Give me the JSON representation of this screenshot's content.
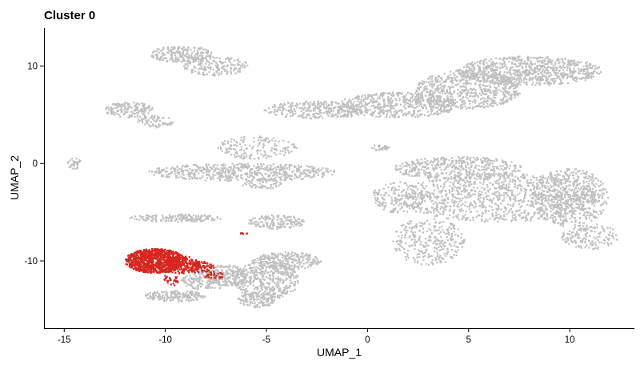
{
  "chart_data": {
    "type": "scatter",
    "title": "Cluster 0",
    "xlabel": "UMAP_1",
    "ylabel": "UMAP_2",
    "xlim": [
      -16,
      13.2
    ],
    "ylim": [
      -16.9,
      13.9
    ],
    "xticks": [
      -15,
      -10,
      -5,
      0,
      5,
      10
    ],
    "yticks": [
      -10,
      0,
      10
    ],
    "xtick_labels": [
      "-15",
      "-10",
      "-5",
      "0",
      "5",
      "10"
    ],
    "ytick_labels": [
      "-10",
      "0",
      "10"
    ],
    "grid": false,
    "legend": "none",
    "colors": {
      "background_cells": "#c0c0c0",
      "highlighted_cells": "#d7261e"
    },
    "series": [
      {
        "role": "other cells",
        "color": "#c0c0c0",
        "regions": [
          {
            "cx": 8.0,
            "cy": 9.5,
            "rx": 3.6,
            "ry": 1.5,
            "n": 800
          },
          {
            "cx": 5.0,
            "cy": 7.6,
            "rx": 2.6,
            "ry": 2.0,
            "n": 650
          },
          {
            "cx": 1.5,
            "cy": 6.0,
            "rx": 3.0,
            "ry": 1.3,
            "n": 550
          },
          {
            "cx": -2.5,
            "cy": 5.5,
            "rx": 2.6,
            "ry": 0.9,
            "n": 300
          },
          {
            "cx": -9.2,
            "cy": 11.2,
            "rx": 1.5,
            "ry": 0.9,
            "n": 220
          },
          {
            "cx": -7.5,
            "cy": 10.0,
            "rx": 1.6,
            "ry": 1.0,
            "n": 180
          },
          {
            "cx": -11.8,
            "cy": 5.5,
            "rx": 1.2,
            "ry": 0.8,
            "n": 160
          },
          {
            "cx": -10.5,
            "cy": 4.3,
            "rx": 0.9,
            "ry": 0.6,
            "n": 70
          },
          {
            "cx": 0.6,
            "cy": 1.6,
            "rx": 0.5,
            "ry": 0.3,
            "n": 30
          },
          {
            "cx": -14.5,
            "cy": 0.0,
            "rx": 0.35,
            "ry": 0.55,
            "n": 35
          },
          {
            "cx": -6.2,
            "cy": -0.9,
            "rx": 4.7,
            "ry": 0.9,
            "n": 600
          },
          {
            "cx": -5.5,
            "cy": 1.6,
            "rx": 2.0,
            "ry": 1.2,
            "n": 160
          },
          {
            "cx": -5.2,
            "cy": -2.1,
            "rx": 1.0,
            "ry": 0.5,
            "n": 60
          },
          {
            "cx": 6.5,
            "cy": -3.5,
            "rx": 5.0,
            "ry": 2.5,
            "n": 1100
          },
          {
            "cx": 4.5,
            "cy": -0.5,
            "rx": 3.2,
            "ry": 1.2,
            "n": 450
          },
          {
            "cx": 10.0,
            "cy": -3.5,
            "rx": 1.9,
            "ry": 3.0,
            "n": 500
          },
          {
            "cx": 11.0,
            "cy": -7.5,
            "rx": 1.4,
            "ry": 1.3,
            "n": 160
          },
          {
            "cx": 3.0,
            "cy": -8.0,
            "rx": 1.8,
            "ry": 2.4,
            "n": 300
          },
          {
            "cx": 1.5,
            "cy": -3.5,
            "rx": 1.3,
            "ry": 1.6,
            "n": 150
          },
          {
            "cx": -9.5,
            "cy": -5.6,
            "rx": 2.3,
            "ry": 0.4,
            "n": 160
          },
          {
            "cx": -4.5,
            "cy": -6.0,
            "rx": 1.4,
            "ry": 0.7,
            "n": 160
          },
          {
            "cx": -7.0,
            "cy": -11.5,
            "rx": 1.0,
            "ry": 1.1,
            "n": 200
          },
          {
            "cx": -5.0,
            "cy": -12.0,
            "rx": 1.6,
            "ry": 2.0,
            "n": 450
          },
          {
            "cx": -4.0,
            "cy": -10.0,
            "rx": 1.7,
            "ry": 0.9,
            "n": 260
          },
          {
            "cx": -5.5,
            "cy": -14.0,
            "rx": 0.9,
            "ry": 0.8,
            "n": 120
          },
          {
            "cx": -9.5,
            "cy": -13.6,
            "rx": 1.5,
            "ry": 0.6,
            "n": 180
          },
          {
            "cx": -8.0,
            "cy": -12.0,
            "rx": 1.2,
            "ry": 1.0,
            "n": 170
          }
        ]
      },
      {
        "role": "Cluster 0",
        "color": "#d7261e",
        "regions": [
          {
            "cx": -10.5,
            "cy": -10.0,
            "rx": 1.5,
            "ry": 1.25,
            "n": 950
          },
          {
            "cx": -9.2,
            "cy": -10.4,
            "rx": 0.9,
            "ry": 0.9,
            "n": 180
          },
          {
            "cx": -8.4,
            "cy": -10.6,
            "rx": 0.8,
            "ry": 0.6,
            "n": 90
          },
          {
            "cx": -7.6,
            "cy": -11.5,
            "rx": 0.5,
            "ry": 0.4,
            "n": 30
          },
          {
            "cx": -9.8,
            "cy": -12.0,
            "rx": 0.5,
            "ry": 0.6,
            "n": 25
          },
          {
            "cx": -6.1,
            "cy": -7.2,
            "rx": 0.2,
            "ry": 0.1,
            "n": 6
          }
        ]
      }
    ]
  }
}
